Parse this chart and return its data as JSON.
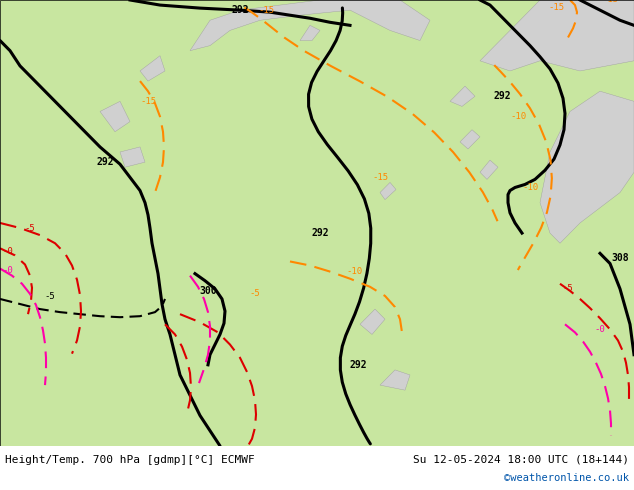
{
  "title_left": "Height/Temp. 700 hPa [gdmp][°C] ECMWF",
  "title_right": "Su 12-05-2024 18:00 UTC (18+144)",
  "copyright": "©weatheronline.co.uk",
  "bg_map_color": "#c8e6a0",
  "land_color": "#c8e6a0",
  "sea_color": "#d0d0d0",
  "border_color": "#a0a0a0",
  "black_contour_color": "#000000",
  "orange_contour_color": "#ff8800",
  "red_contour_color": "#dd0000",
  "magenta_contour_color": "#ff00aa",
  "dark_orange_color": "#cc6600",
  "bottom_bar_color": "#f0f0f0",
  "bottom_text_color": "#000000",
  "copyright_color": "#0055aa",
  "fig_width": 6.34,
  "fig_height": 4.9
}
